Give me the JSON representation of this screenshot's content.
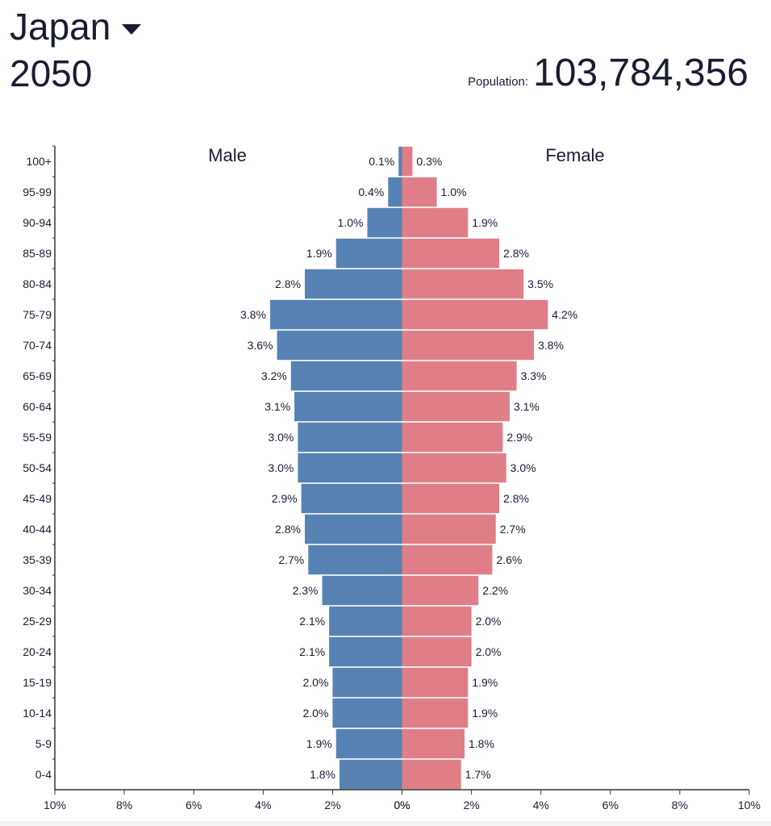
{
  "header": {
    "country": "Japan",
    "year": "2050",
    "population_label": "Population:",
    "population_value": "103,784,356"
  },
  "icons": {
    "country_dropdown": "caret-down-icon"
  },
  "colors": {
    "male": "#5683b3",
    "female": "#e07e87",
    "text": "#1a1c33",
    "axis": "#333333"
  },
  "chart_data": {
    "type": "bar",
    "orientation": "horizontal-pyramid",
    "title": "Japan 2050",
    "categories": [
      "100+",
      "95-99",
      "90-94",
      "85-89",
      "80-84",
      "75-79",
      "70-74",
      "65-69",
      "60-64",
      "55-59",
      "50-54",
      "45-49",
      "40-44",
      "35-39",
      "30-34",
      "25-29",
      "20-24",
      "15-19",
      "10-14",
      "5-9",
      "0-4"
    ],
    "series": [
      {
        "name": "Male",
        "values": [
          0.1,
          0.4,
          1.0,
          1.9,
          2.8,
          3.8,
          3.6,
          3.2,
          3.1,
          3.0,
          3.0,
          2.9,
          2.8,
          2.7,
          2.3,
          2.1,
          2.1,
          2.0,
          2.0,
          1.9,
          1.8
        ],
        "labels": [
          "0.1%",
          "0.4%",
          "1.0%",
          "1.9%",
          "2.8%",
          "3.8%",
          "3.6%",
          "3.2%",
          "3.1%",
          "3.0%",
          "3.0%",
          "2.9%",
          "2.8%",
          "2.7%",
          "2.3%",
          "2.1%",
          "2.1%",
          "2.0%",
          "2.0%",
          "1.9%",
          "1.8%"
        ]
      },
      {
        "name": "Female",
        "values": [
          0.3,
          1.0,
          1.9,
          2.8,
          3.5,
          4.2,
          3.8,
          3.3,
          3.1,
          2.9,
          3.0,
          2.8,
          2.7,
          2.6,
          2.2,
          2.0,
          2.0,
          1.9,
          1.9,
          1.8,
          1.7
        ],
        "labels": [
          "0.3%",
          "1.0%",
          "1.9%",
          "2.8%",
          "3.5%",
          "4.2%",
          "3.8%",
          "3.3%",
          "3.1%",
          "2.9%",
          "3.0%",
          "2.8%",
          "2.7%",
          "2.6%",
          "2.2%",
          "2.0%",
          "2.0%",
          "1.9%",
          "1.9%",
          "1.8%",
          "1.7%"
        ]
      }
    ],
    "x_ticks": [
      "10%",
      "8%",
      "6%",
      "4%",
      "2%",
      "0%",
      "0%",
      "2%",
      "4%",
      "6%",
      "8%",
      "10%"
    ],
    "xlim": [
      -10,
      10
    ],
    "xlabel": "",
    "ylabel": "",
    "grid": false
  }
}
